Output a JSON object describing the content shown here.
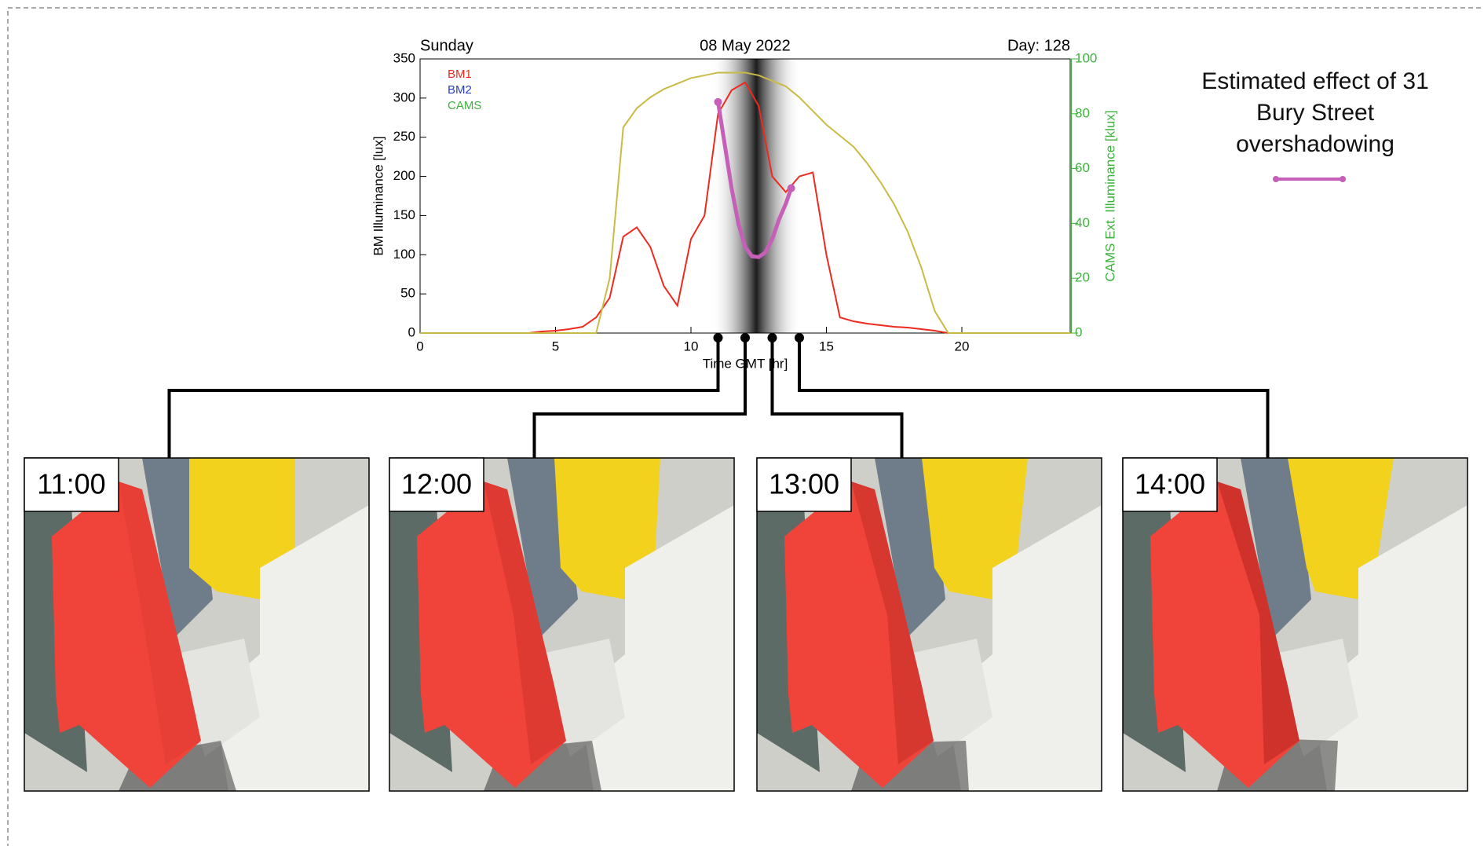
{
  "chart_data": {
    "type": "line",
    "header": {
      "left": "Sunday",
      "center": "08 May 2022",
      "right": "Day: 128"
    },
    "xlabel": "Time GMT [hr]",
    "ylabel": "BM Illuminance [lux]",
    "y2label": "CAMS Ext. Illuminance [klux]",
    "xlim": [
      0,
      24
    ],
    "xticks": [
      0,
      5,
      10,
      15,
      20
    ],
    "ylim": [
      0,
      350
    ],
    "yticks": [
      0,
      50,
      100,
      150,
      200,
      250,
      300,
      350
    ],
    "y2lim": [
      0,
      100
    ],
    "y2ticks": [
      0,
      20,
      40,
      60,
      80,
      100
    ],
    "y2_color": "#3db23d",
    "series": [
      {
        "name": "BM1",
        "color": "#ee2a1f",
        "x": [
          0,
          0.5,
          1,
          1.5,
          2,
          2.5,
          3,
          3.5,
          4,
          4.5,
          5,
          5.5,
          6,
          6.5,
          7,
          7.5,
          8,
          8.5,
          9,
          9.5,
          10,
          10.5,
          11,
          11.5,
          12,
          12.5,
          13,
          13.5,
          14,
          14.5,
          15,
          15.5,
          16,
          16.5,
          17,
          17.5,
          18,
          18.5,
          19,
          19.5,
          20,
          20.5,
          21,
          21.5,
          22,
          22.5,
          23,
          23.5,
          24
        ],
        "values": [
          0,
          0,
          0,
          0,
          0,
          0,
          0,
          0,
          0,
          2,
          3,
          5,
          8,
          20,
          45,
          123,
          135,
          110,
          60,
          35,
          120,
          150,
          280,
          310,
          320,
          290,
          200,
          180,
          200,
          205,
          100,
          20,
          15,
          12,
          10,
          8,
          7,
          5,
          3,
          0,
          0,
          0,
          0,
          0,
          0,
          0,
          0,
          0,
          0
        ]
      },
      {
        "name": "BM2",
        "color": "#2a3fbf",
        "x": [],
        "values": []
      },
      {
        "name": "CAMS",
        "color": "#c9bb45",
        "legend_color": "#3db23d",
        "axis": "y2",
        "x": [
          0,
          0.5,
          1,
          1.5,
          2,
          2.5,
          3,
          3.5,
          4,
          4.5,
          5,
          5.5,
          6,
          6.5,
          7,
          7.5,
          8,
          8.5,
          9,
          9.5,
          10,
          10.5,
          11,
          11.5,
          12,
          12.5,
          13,
          13.5,
          14,
          14.5,
          15,
          15.5,
          16,
          16.5,
          17,
          17.5,
          18,
          18.5,
          19,
          19.5,
          20,
          20.5,
          21,
          21.5,
          22,
          22.5,
          23,
          23.5,
          24
        ],
        "values": [
          0,
          0,
          0,
          0,
          0,
          0,
          0,
          0,
          0,
          0,
          0,
          0,
          0,
          0,
          20,
          75,
          82,
          86,
          89,
          91,
          93,
          94,
          95,
          95,
          95,
          94,
          92,
          90,
          86,
          81,
          76,
          72,
          68,
          62,
          55,
          47,
          37,
          24,
          8,
          0,
          0,
          0,
          0,
          0,
          0,
          0,
          0,
          0,
          0
        ]
      },
      {
        "name": "Estimated effect of 31 Bury Street overshadowing",
        "color": "#c55fb8",
        "in_legend_box": false,
        "x": [
          11,
          11.25,
          11.5,
          11.75,
          12,
          12.25,
          12.5,
          12.75,
          13,
          13.25,
          13.5,
          13.7
        ],
        "values": [
          295,
          240,
          185,
          140,
          110,
          98,
          97,
          103,
          120,
          145,
          165,
          185
        ]
      }
    ],
    "panels": [
      {
        "label": "11:00",
        "hour": 11
      },
      {
        "label": "12:00",
        "hour": 12
      },
      {
        "label": "13:00",
        "hour": 13
      },
      {
        "label": "14:00",
        "hour": 14
      }
    ]
  }
}
